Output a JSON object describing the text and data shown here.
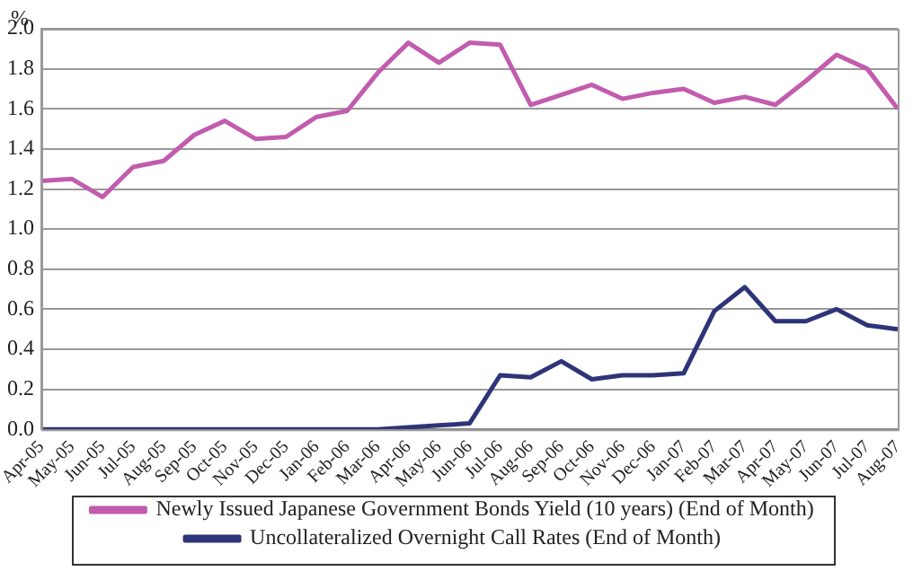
{
  "chart_data": {
    "type": "line",
    "ylabel": "%",
    "categories": [
      "Apr-05",
      "May-05",
      "Jun-05",
      "Jul-05",
      "Aug-05",
      "Sep-05",
      "Oct-05",
      "Nov-05",
      "Dec-05",
      "Jan-06",
      "Feb-06",
      "Mar-06",
      "Apr-06",
      "May-06",
      "Jun-06",
      "Jul-06",
      "Aug-06",
      "Sep-06",
      "Oct-06",
      "Nov-06",
      "Dec-06",
      "Jan-07",
      "Feb-07",
      "Mar-07",
      "Apr-07",
      "May-07",
      "Jun-07",
      "Jul-07",
      "Aug-07"
    ],
    "series": [
      {
        "name": "Newly Issued Japanese Government Bonds Yield (10 years) (End of Month)",
        "color": "#c25cae",
        "values": [
          1.24,
          1.25,
          1.16,
          1.31,
          1.34,
          1.47,
          1.54,
          1.45,
          1.46,
          1.56,
          1.59,
          1.78,
          1.93,
          1.83,
          1.93,
          1.92,
          1.62,
          1.67,
          1.72,
          1.65,
          1.68,
          1.7,
          1.63,
          1.66,
          1.62,
          1.74,
          1.87,
          1.8,
          1.6
        ]
      },
      {
        "name": "Uncollateralized Overnight Call Rates (End of Month)",
        "color": "#2e3478",
        "values": [
          0,
          0,
          0,
          0,
          0,
          0,
          0,
          0,
          0,
          0,
          0,
          0,
          0.01,
          0.02,
          0.03,
          0.27,
          0.26,
          0.34,
          0.25,
          0.27,
          0.27,
          0.28,
          0.59,
          0.71,
          0.54,
          0.54,
          0.6,
          0.52,
          0.5
        ]
      }
    ],
    "ylim": [
      0,
      2.0
    ],
    "yticks": [
      {
        "value": 0,
        "label": "0.0"
      },
      {
        "value": 0.2,
        "label": "0.2"
      },
      {
        "value": 0.4,
        "label": "0.4"
      },
      {
        "value": 0.6,
        "label": "0.6"
      },
      {
        "value": 0.8,
        "label": "0.8"
      },
      {
        "value": 1.0,
        "label": "1.0"
      },
      {
        "value": 1.2,
        "label": "1.2"
      },
      {
        "value": 1.4,
        "label": "1.4"
      },
      {
        "value": 1.6,
        "label": "1.6"
      },
      {
        "value": 1.8,
        "label": "1.8"
      },
      {
        "value": 2.0,
        "label": "2.0"
      }
    ],
    "grid": "y",
    "legend": "bottom",
    "marker": "none",
    "line_style": "solid"
  }
}
